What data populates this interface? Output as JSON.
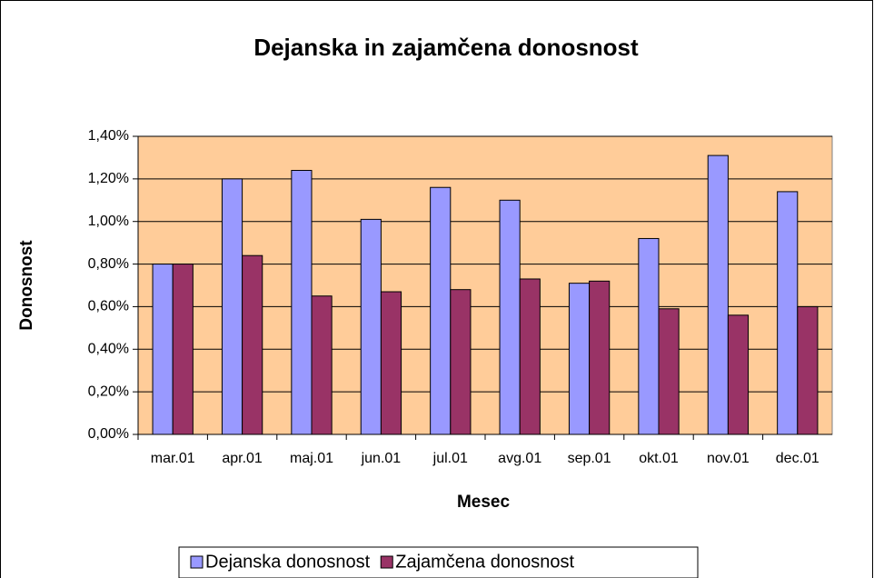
{
  "chart_data": {
    "type": "bar",
    "title": "Dejanska in zajamčena donosnost",
    "x_label": "Mesec",
    "y_label": "Donosnost",
    "categories": [
      "mar.01",
      "apr.01",
      "maj.01",
      "jun.01",
      "jul.01",
      "avg.01",
      "sep.01",
      "okt.01",
      "nov.01",
      "dec.01"
    ],
    "series": [
      {
        "name": "Dejanska donosnost",
        "color": "#9999ff",
        "values": [
          0.8,
          1.2,
          1.24,
          1.01,
          1.16,
          1.1,
          0.71,
          0.92,
          1.31,
          1.14
        ]
      },
      {
        "name": "Zajamčena donosnost",
        "color": "#993366",
        "values": [
          0.8,
          0.84,
          0.65,
          0.67,
          0.68,
          0.73,
          0.72,
          0.59,
          0.56,
          0.6
        ]
      }
    ],
    "ylim": [
      0,
      1.4
    ],
    "yticks": [
      {
        "value": 0,
        "label": "0,00%"
      },
      {
        "value": 0.2,
        "label": "0,20%"
      },
      {
        "value": 0.4,
        "label": "0,40%"
      },
      {
        "value": 0.6,
        "label": "0,60%"
      },
      {
        "value": 0.8,
        "label": "0,80%"
      },
      {
        "value": 1.0,
        "label": "1,00%"
      },
      {
        "value": 1.2,
        "label": "1,20%"
      },
      {
        "value": 1.4,
        "label": "1,40%"
      }
    ],
    "grid": true,
    "plot_background": "#ffcc99",
    "legend": "bottom"
  }
}
